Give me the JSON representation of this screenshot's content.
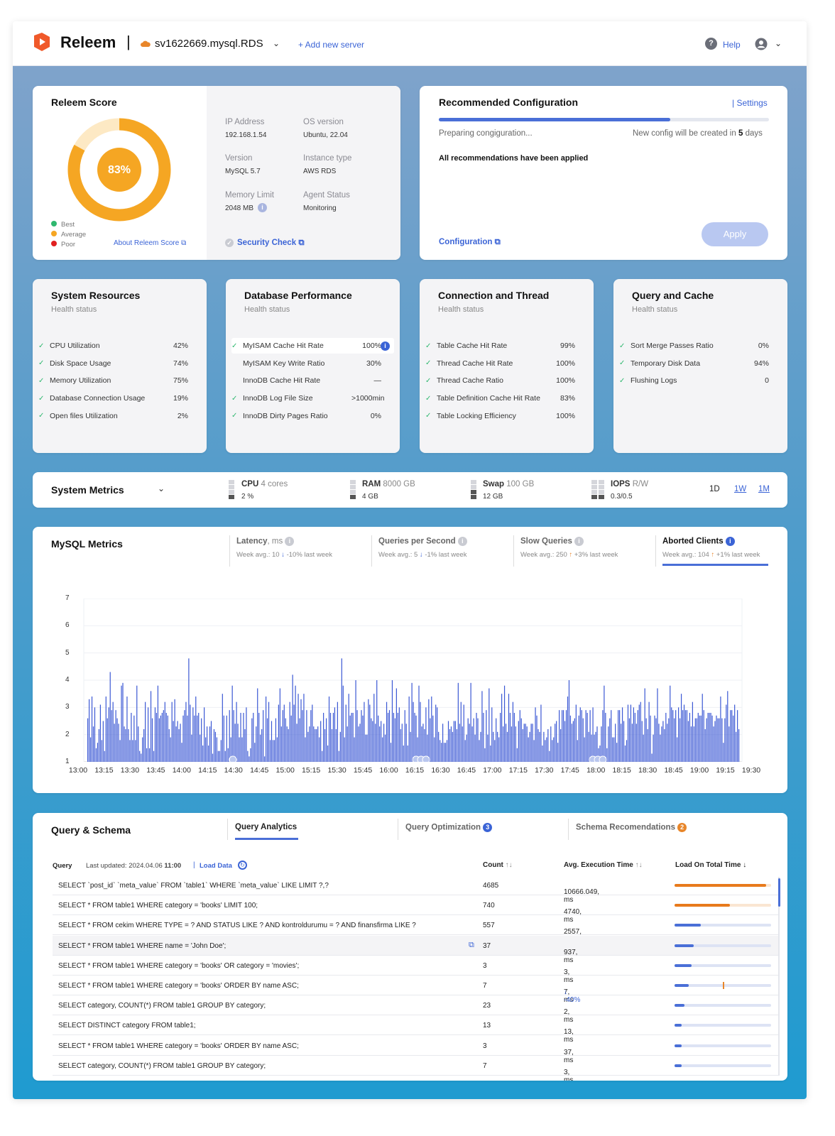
{
  "header": {
    "brand": "Releem",
    "server_name": "sv1622669.mysql.RDS",
    "add_server": "+ Add new server",
    "help": "Help"
  },
  "score": {
    "title": "Releem Score",
    "value": "83%",
    "fraction": 0.83,
    "legend": [
      "Best",
      "Average",
      "Poor"
    ],
    "about": "About Releem Score",
    "colors": {
      "best": "#2fb86f",
      "average": "#f5a623",
      "poor": "#e02020",
      "ring": "#f5a623"
    }
  },
  "server_info": {
    "ip_label": "IP Address",
    "ip_value": "192.168.1.54",
    "os_label": "OS version",
    "os_value": "Ubuntu, 22.04",
    "version_label": "Version",
    "version_value": "MySQL 5.7",
    "instance_label": "Instance type",
    "instance_value": "AWS RDS",
    "memory_label": "Memory Limit",
    "memory_value": "2048 MB",
    "agent_label": "Agent Status",
    "agent_value": "Monitoring",
    "security": "Security Check"
  },
  "recommended": {
    "title": "Recommended Configuration",
    "settings": "| Settings",
    "progress": 0.7,
    "preparing": "Preparing congiguration...",
    "new_config_prefix": "New config will be created in",
    "new_config_days": "5",
    "new_config_suffix": "days",
    "applied": "All recommendations have been applied",
    "configuration": "Configuration",
    "apply": "Apply"
  },
  "health": {
    "subtitle": "Health status",
    "system": {
      "title": "System Resources",
      "rows": [
        {
          "name": "CPU Utilization",
          "value": "42%"
        },
        {
          "name": "Disk Space Usage",
          "value": "74%"
        },
        {
          "name": "Memory Utilization",
          "value": "75%"
        },
        {
          "name": "Database Connection Usage",
          "value": "19%"
        },
        {
          "name": "Open files Utilization",
          "value": "2%"
        }
      ]
    },
    "database": {
      "title": "Database Performance",
      "rows": [
        {
          "name": "MyISAM Cache Hit Rate",
          "value": "100%",
          "check": true
        },
        {
          "name": "MyISAM Key Write Ratio",
          "value": "30%",
          "check": false
        },
        {
          "name": "InnoDB Cache Hit Rate",
          "value": "—",
          "check": false
        },
        {
          "name": "InnoDB Log File Size",
          "value": ">1000min",
          "check": true
        },
        {
          "name": "InnoDB Dirty Pages Ratio",
          "value": "0%",
          "check": true
        }
      ]
    },
    "connection": {
      "title": "Connection and Thread",
      "rows": [
        {
          "name": "Table Cache Hit Rate",
          "value": "99%"
        },
        {
          "name": "Thread Cache Hit Rate",
          "value": "100%"
        },
        {
          "name": "Thread Cache Ratio",
          "value": "100%"
        },
        {
          "name": "Table Definition Cache Hit Rate",
          "value": "83%"
        },
        {
          "name": "Table Locking Efficiency",
          "value": "100%"
        }
      ]
    },
    "query_cache": {
      "title": "Query and Cache",
      "rows": [
        {
          "name": "Sort Merge Passes Ratio",
          "value": "0%"
        },
        {
          "name": "Temporary Disk Data",
          "value": "94%"
        },
        {
          "name": "Flushing Logs",
          "value": "0"
        }
      ]
    }
  },
  "system_metrics": {
    "title": "System Metrics",
    "cpu_label": "CPU",
    "cpu_detail": "4 cores",
    "cpu_value": "2 %",
    "ram_label": "RAM",
    "ram_detail": "8000 GB",
    "ram_value": "4 GB",
    "swap_label": "Swap",
    "swap_detail": "100 GB",
    "swap_value": "12 GB",
    "iops_label": "IOPS",
    "iops_detail": "R/W",
    "iops_value": "0.3/0.5",
    "ranges": [
      "1D",
      "1W",
      "1M"
    ]
  },
  "mysql_metrics": {
    "title": "MySQL Metrics",
    "tabs": [
      {
        "label": "Latency",
        "unit": ", ms",
        "week": "Week avg.: 10",
        "arrow": "↓",
        "trend": "-10% last week"
      },
      {
        "label": "Queries per Second",
        "unit": "",
        "week": "Week avg.: 5",
        "arrow": "↓",
        "trend": "-1% last week"
      },
      {
        "label": "Slow Queries",
        "unit": "",
        "week": "Week avg.: 250",
        "arrow": "↑",
        "trend": "+3% last week"
      },
      {
        "label": "Aborted Clients",
        "unit": "",
        "week": "Week avg.: 104",
        "arrow": "↑",
        "trend": "+1% last week"
      }
    ]
  },
  "chart_data": {
    "type": "bar",
    "ylim": [
      1,
      7
    ],
    "y_ticks": [
      "1",
      "2",
      "3",
      "4",
      "5",
      "6",
      "7"
    ],
    "x_ticks": [
      "13:00",
      "13:15",
      "13:30",
      "13:45",
      "14:00",
      "14:15",
      "14:30",
      "14:45",
      "15:00",
      "15:15",
      "15:30",
      "15:45",
      "16:00",
      "16:15",
      "16:30",
      "16:45",
      "17:00",
      "17:15",
      "17:30",
      "17:45",
      "18:00",
      "18:15",
      "18:30",
      "18:45",
      "19:00",
      "19:15",
      "19:30"
    ],
    "color": "#3b58d4",
    "values": [
      2.6,
      3.3,
      1.9,
      3.4,
      2.3,
      3.0,
      1.5,
      1.7,
      2.2,
      3.1,
      1.8,
      2.5,
      1.4,
      3.4,
      2.6,
      3.0,
      4.3,
      2.9,
      3.2,
      2.4,
      2.9,
      2.6,
      2.4,
      1.8,
      3.8,
      3.9,
      2.3,
      2.2,
      3.4,
      2.2,
      1.8,
      2.8,
      1.8,
      2.7,
      1.8,
      3.8,
      2.3,
      1.4,
      1.3,
      1.9,
      2.2,
      3.2,
      1.5,
      3.0,
      1.5,
      3.6,
      2.6,
      1.4,
      3.0,
      2.8,
      3.8,
      2.6,
      2.7,
      2.8,
      2.9,
      3.2,
      2.8,
      2.7,
      2.2,
      1.9,
      3.2,
      2.5,
      3.3,
      2.3,
      2.5,
      2.2,
      2.4,
      1.7,
      2.7,
      2.9,
      3.2,
      2.7,
      4.8,
      3.1,
      2.0,
      3.0,
      2.7,
      3.4,
      2.7,
      2.8,
      2.0,
      2.6,
      1.6,
      3.0,
      1.9,
      2.3,
      1.6,
      2.3,
      2.5,
      1.3,
      2.2,
      2.1,
      1.9,
      1.4,
      1.4,
      1.8,
      3.5,
      2.7,
      1.4,
      2.7,
      1.5,
      2.9,
      1.9,
      3.8,
      2.9,
      2.4,
      3.2,
      2.4,
      1.9,
      2.8,
      1.9,
      2.8,
      2.2,
      3.0,
      1.4,
      1.2,
      1.5,
      2.6,
      2.8,
      1.7,
      2.3,
      3.7,
      2.8,
      2.0,
      2.2,
      2.9,
      1.2,
      3.4,
      2.6,
      3.2,
      1.8,
      2.5,
      1.8,
      1.8,
      2.6,
      1.9,
      3.1,
      3.7,
      2.3,
      2.9,
      3.1,
      2.6,
      2.3,
      2.2,
      3.2,
      2.7,
      4.2,
      3.1,
      3.8,
      2.4,
      3.5,
      2.6,
      3.3,
      2.9,
      3.5,
      1.9,
      2.9,
      2.1,
      2.3,
      2.9,
      3.1,
      2.3,
      2.2,
      2.2,
      2.3,
      1.9,
      2.5,
      1.4,
      2.8,
      2.2,
      2.6,
      1.6,
      3.4,
      2.8,
      2.2,
      2.8,
      3.0,
      2.2,
      3.2,
      1.4,
      2.1,
      4.8,
      3.8,
      1.9,
      3.1,
      2.3,
      3.5,
      2.7,
      2.8,
      2.8,
      1.9,
      4.0,
      2.9,
      2.3,
      2.4,
      2.9,
      2.7,
      3.2,
      2.0,
      2.0,
      3.3,
      3.1,
      2.6,
      2.5,
      3.5,
      2.4,
      4.0,
      2.7,
      2.3,
      2.5,
      1.9,
      2.4,
      2.0,
      3.2,
      2.8,
      2.9,
      1.7,
      4.0,
      2.8,
      2.6,
      3.7,
      2.8,
      3.0,
      2.2,
      2.4,
      1.6,
      2.9,
      2.4,
      1.6,
      3.4,
      2.1,
      3.9,
      3.2,
      2.8,
      2.7,
      1.9,
      3.8,
      3.2,
      2.3,
      2.4,
      2.2,
      3.0,
      2.0,
      3.3,
      2.6,
      3.4,
      2.7,
      1.9,
      3.1,
      3.0,
      2.1,
      1.8,
      1.7,
      2.4,
      1.7,
      1.7,
      1.8,
      2.5,
      2.2,
      2.3,
      2.1,
      2.5,
      2.5,
      2.2,
      3.9,
      2.4,
      3.2,
      2.3,
      3.1,
      1.8,
      2.0,
      2.6,
      2.4,
      3.9,
      2.3,
      2.6,
      2.0,
      2.8,
      2.6,
      1.8,
      2.1,
      3.6,
      2.8,
      1.5,
      2.9,
      2.0,
      3.7,
      1.6,
      3.0,
      2.1,
      1.8,
      2.6,
      2.1,
      1.9,
      2.8,
      3.5,
      2.3,
      3.8,
      2.4,
      2.1,
      3.5,
      2.8,
      2.3,
      3.2,
      2.8,
      2.3,
      1.5,
      2.5,
      2.9,
      2.6,
      2.2,
      2.4,
      2.4,
      2.3,
      1.9,
      2.1,
      2.4,
      2.4,
      1.8,
      3.0,
      2.7,
      2.2,
      2.1,
      3.1,
      1.6,
      2.1,
      1.8,
      1.9,
      2.2,
      1.4,
      2.3,
      1.8,
      1.9,
      2.4,
      2.5,
      1.7,
      2.9,
      2.2,
      2.9,
      2.9,
      2.5,
      2.9,
      3.4,
      4.0,
      2.7,
      2.4,
      2.5,
      2.6,
      3.1,
      1.8,
      2.7,
      3.0,
      2.9,
      2.6,
      1.9,
      2.9,
      2.8,
      2.1,
      2.9,
      2.0,
      3.0,
      2.0,
      2.1,
      2.3,
      1.5,
      1.6,
      2.3,
      2.9,
      3.8,
      2.8,
      1.5,
      2.3,
      2.6,
      2.9,
      1.9,
      1.9,
      2.4,
      1.7,
      2.9,
      2.9,
      2.4,
      3.0,
      2.5,
      1.6,
      1.8,
      3.1,
      2.6,
      3.1,
      2.4,
      3.0,
      2.8,
      2.4,
      2.9,
      3.1,
      3.2,
      2.5,
      2.0,
      3.7,
      2.6,
      2.2,
      3.2,
      2.7,
      1.3,
      2.0,
      2.7,
      2.6,
      3.7,
      2.4,
      2.0,
      2.3,
      2.5,
      2.2,
      2.8,
      2.4,
      2.6,
      3.8,
      3.0,
      2.9,
      2.6,
      2.9,
      1.9,
      3.0,
      2.6,
      3.5,
      2.9,
      3.1,
      2.9,
      2.9,
      2.5,
      2.8,
      2.3,
      3.2,
      2.3,
      2.6,
      2.6,
      2.8,
      2.7,
      2.7,
      3.5,
      2.9,
      2.2,
      2.6,
      2.8,
      2.8,
      2.8,
      2.7,
      2.3,
      2.5,
      2.7,
      2.6,
      2.6,
      3.4,
      2.6,
      1.7,
      2.6,
      3.1,
      3.6,
      2.3,
      2.9,
      2.9,
      2.7,
      3.1,
      2.1,
      2.9,
      2.2
    ]
  },
  "query_schema": {
    "title": "Query & Schema",
    "tabs": [
      {
        "label": "Query Analytics",
        "badge": ""
      },
      {
        "label": "Query Optimization",
        "badge": "3"
      },
      {
        "label": "Schema Recomendations",
        "badge": "2"
      }
    ],
    "col_query": "Query",
    "updated_prefix": "Last updated: 2024.04.06",
    "updated_time": "11:00",
    "load_data": "Load Data",
    "col_count": "Count",
    "col_avg": "Avg. Execution Time",
    "col_load": "Load On Total Time",
    "rows": [
      {
        "query": "SELECT `post_id` `meta_value` FROM `table1` WHERE `meta_value` LIKE LIMIT ?,?",
        "count": "4685",
        "avg": "10666.049, ms",
        "load": 0.95,
        "color": "orange"
      },
      {
        "query": "SELECT * FROM table1 WHERE category = 'books' LIMIT 100;",
        "count": "740",
        "avg": "4740, ms",
        "load": 0.57,
        "color": "orange"
      },
      {
        "query": "SELECT * FROM cekim WHERE TYPE = ? AND STATUS LIKE ? AND kontroldurumu = ? AND finansfirma LIKE ?",
        "count": "557",
        "avg": "2557, ms",
        "load": 0.27,
        "color": "blue"
      },
      {
        "query": "SELECT * FROM table1 WHERE name = 'John Doe';",
        "count": "37",
        "avg": "937, ms",
        "load": 0.2,
        "color": "blue"
      },
      {
        "query": "SELECT * FROM table1 WHERE category = 'books' OR category = 'movies';",
        "count": "3",
        "avg": "3, ms",
        "load": 0.18,
        "color": "blue"
      },
      {
        "query": "SELECT * FROM table1 WHERE category = 'books' ORDER BY name ASC;",
        "count": "7",
        "avg": "7, ms",
        "avg_trend": "↓ -40%",
        "load": 0.15,
        "color": "blue"
      },
      {
        "query": "SELECT category, COUNT(*) FROM table1 GROUP BY category;",
        "count": "23",
        "avg": "2, ms",
        "load": 0.1,
        "color": "blue"
      },
      {
        "query": "SELECT DISTINCT category FROM table1;",
        "count": "13",
        "avg": "13, ms",
        "load": 0.07,
        "color": "blue"
      },
      {
        "query": "SELECT * FROM table1 WHERE category = 'books' ORDER BY name ASC;",
        "count": "3",
        "avg": "37, ms",
        "load": 0.07,
        "color": "blue"
      },
      {
        "query": "SELECT category, COUNT(*) FROM table1 GROUP BY category;",
        "count": "7",
        "avg": "3, ms",
        "load": 0.07,
        "color": "blue"
      }
    ]
  }
}
